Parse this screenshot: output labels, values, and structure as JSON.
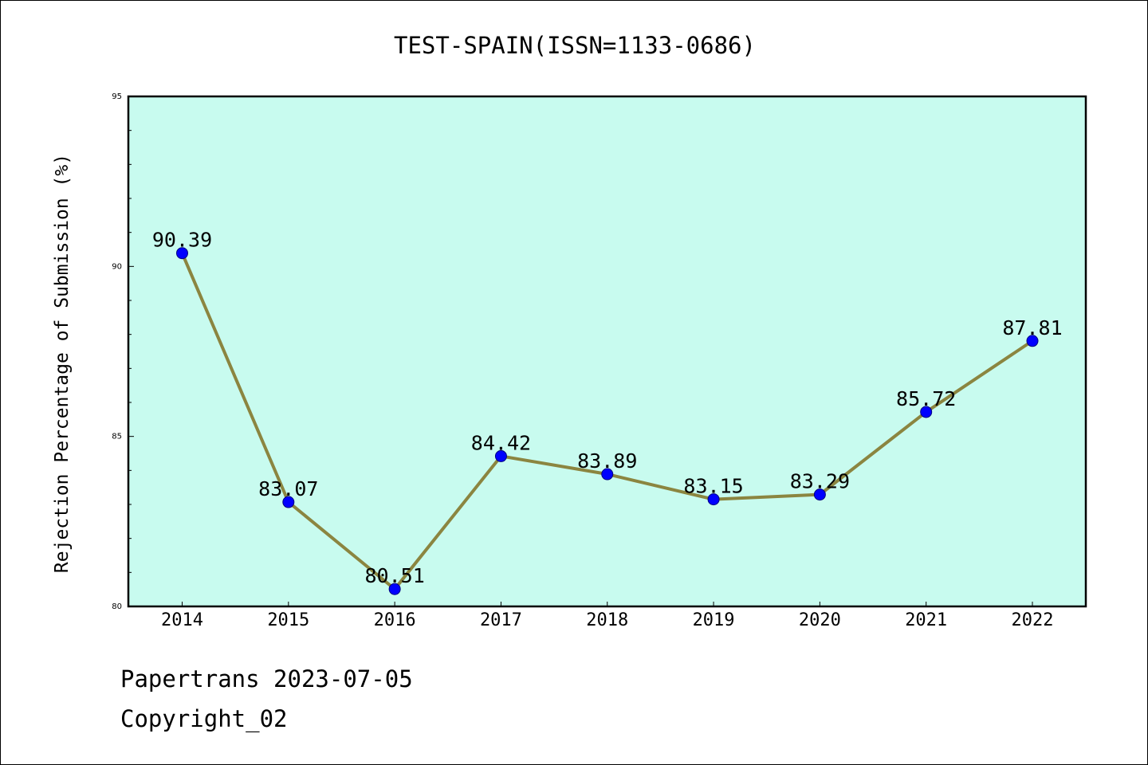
{
  "colors": {
    "plot_background": "#c8fbef",
    "line": "#8b8540",
    "marker": "#0000ff"
  },
  "footer": {
    "line1": "Papertrans 2023-07-05",
    "line2": "Copyright_02"
  },
  "chart_data": {
    "type": "line",
    "title": "TEST-SPAIN(ISSN=1133-0686)",
    "xlabel": "",
    "ylabel": "Rejection Percentage of Submission (%)",
    "categories": [
      "2014",
      "2015",
      "2016",
      "2017",
      "2018",
      "2019",
      "2020",
      "2021",
      "2022"
    ],
    "series": [
      {
        "values": [
          90.39,
          83.07,
          80.51,
          84.42,
          83.89,
          83.15,
          83.29,
          85.72,
          87.81
        ],
        "labels": [
          "90.39",
          "83.07",
          "80.51",
          "84.42",
          "83.89",
          "83.15",
          "83.29",
          "85.72",
          "87.81"
        ]
      }
    ],
    "ylim": [
      80,
      95
    ],
    "y_major_ticks": [
      "80",
      "85",
      "90",
      "95"
    ],
    "y_minor_step": 1,
    "grid": false,
    "legend": "none"
  }
}
